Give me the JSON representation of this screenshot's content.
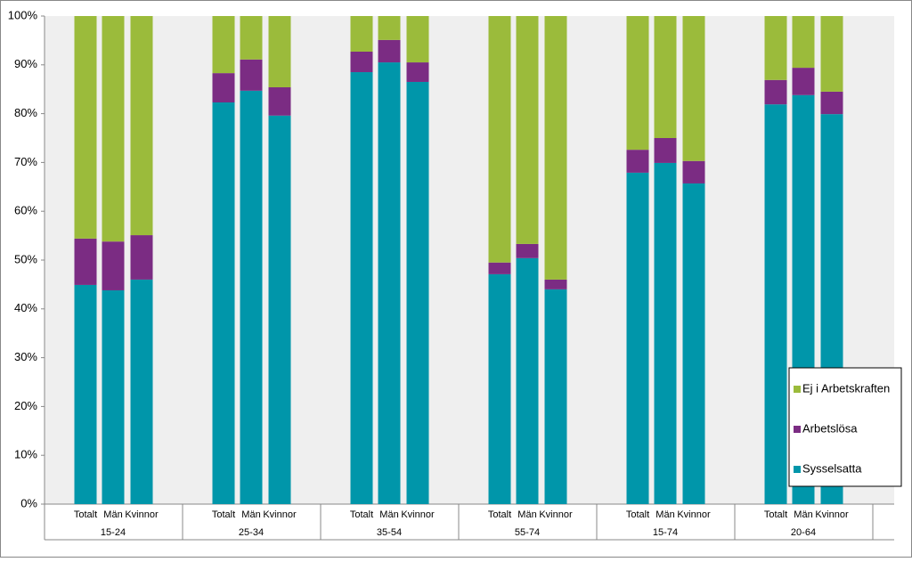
{
  "chart_data": {
    "type": "stacked-bar",
    "groups": [
      {
        "label": "15-24",
        "categories": [
          "Totalt",
          "Män",
          "Kvinnor"
        ]
      },
      {
        "label": "25-34",
        "categories": [
          "Totalt",
          "Män",
          "Kvinnor"
        ]
      },
      {
        "label": "35-54",
        "categories": [
          "Totalt",
          "Män",
          "Kvinnor"
        ]
      },
      {
        "label": "55-74",
        "categories": [
          "Totalt",
          "Män",
          "Kvinnor"
        ]
      },
      {
        "label": "15-74",
        "categories": [
          "Totalt",
          "Män",
          "Kvinnor"
        ]
      },
      {
        "label": "20-64",
        "categories": [
          "Totalt",
          "Män",
          "Kvinnor"
        ]
      }
    ],
    "series": [
      {
        "name": "Sysselsatta",
        "color": "#0096aa",
        "values": [
          44.9,
          43.8,
          46.0,
          82.3,
          84.7,
          79.6,
          88.5,
          90.5,
          86.5,
          47.1,
          50.4,
          44.0,
          67.9,
          69.9,
          65.7,
          81.9,
          83.8,
          79.9
        ]
      },
      {
        "name": "Arbetslösa",
        "color": "#7b2c83",
        "values": [
          9.5,
          10.0,
          9.1,
          6.0,
          6.4,
          5.8,
          4.2,
          4.6,
          4.0,
          2.4,
          2.9,
          2.0,
          4.7,
          5.1,
          4.6,
          5.0,
          5.6,
          4.6
        ]
      },
      {
        "name": "Ej i Arbetskraften",
        "color": "#9bbb3b",
        "values": [
          45.6,
          46.2,
          44.9,
          11.7,
          8.9,
          14.6,
          7.3,
          4.9,
          9.5,
          50.5,
          46.7,
          54.0,
          27.4,
          25.0,
          29.7,
          13.1,
          10.6,
          15.5
        ]
      }
    ],
    "ylim": [
      0,
      100
    ],
    "yticks": [
      {
        "value": 0,
        "label": "0%"
      },
      {
        "value": 10,
        "label": "10%"
      },
      {
        "value": 20,
        "label": "20%"
      },
      {
        "value": 30,
        "label": "30%"
      },
      {
        "value": 40,
        "label": "40%"
      },
      {
        "value": 50,
        "label": "50%"
      },
      {
        "value": 60,
        "label": "60%"
      },
      {
        "value": 70,
        "label": "70%"
      },
      {
        "value": 80,
        "label": "80%"
      },
      {
        "value": 90,
        "label": "90%"
      },
      {
        "value": 100,
        "label": "100%"
      }
    ],
    "legend": "bottom-right"
  }
}
